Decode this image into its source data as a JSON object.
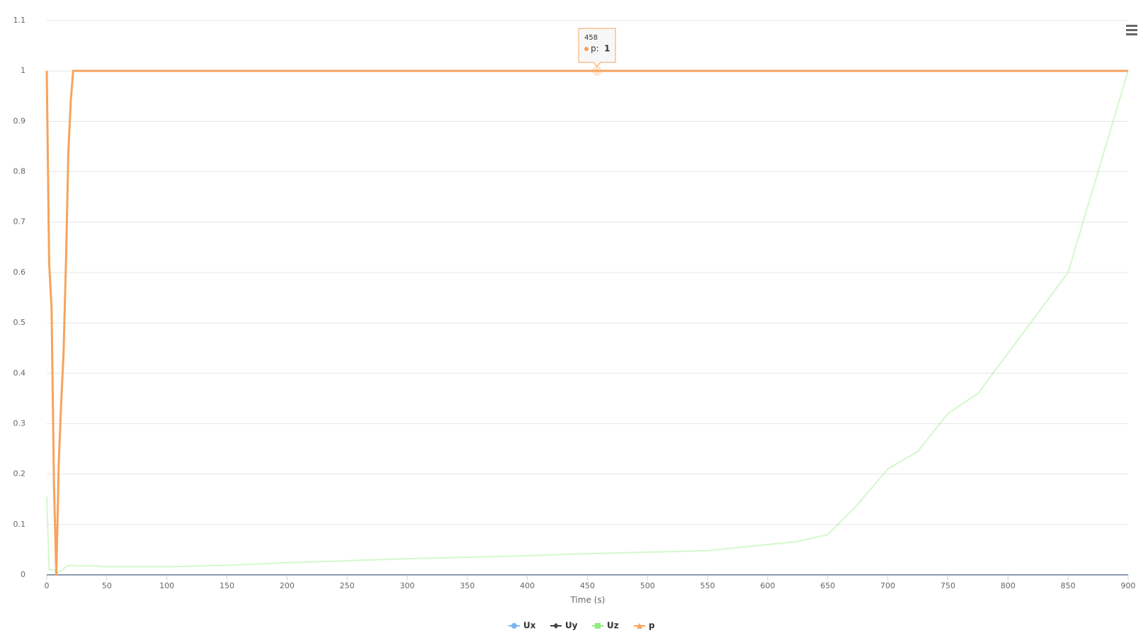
{
  "chart_data": {
    "type": "line",
    "x_label": "Time (s)",
    "x": [
      0,
      2,
      4,
      6,
      8,
      10,
      12,
      14,
      16,
      18,
      20,
      22,
      25,
      30,
      40,
      50,
      75,
      100,
      150,
      200,
      250,
      300,
      350,
      400,
      450,
      500,
      550,
      600,
      625,
      650,
      675,
      700,
      725,
      750,
      775,
      800,
      825,
      850,
      875,
      900
    ],
    "series": [
      {
        "name": "Ux",
        "color": "#7cb5ec",
        "marker": "circle",
        "values": [
          0,
          0,
          0,
          0,
          0,
          0,
          0,
          0,
          0,
          0,
          0,
          0,
          0,
          0,
          0,
          0,
          0,
          0,
          0,
          0,
          0,
          0,
          0,
          0,
          0,
          0,
          0,
          0,
          0,
          0,
          0,
          0,
          0,
          0,
          0,
          0,
          0,
          0,
          0,
          0
        ]
      },
      {
        "name": "Uy",
        "color": "#434348",
        "marker": "diamond",
        "values": [
          0,
          0,
          0,
          0,
          0,
          0,
          0,
          0,
          0,
          0,
          0,
          0,
          0,
          0,
          0,
          0,
          0,
          0,
          0,
          0,
          0,
          0,
          0,
          0,
          0,
          0,
          0,
          0,
          0,
          0,
          0,
          0,
          0,
          0,
          0,
          0,
          0,
          0,
          0,
          0
        ]
      },
      {
        "name": "Uz",
        "color": "#90ed7d",
        "marker": "square",
        "values": [
          0.155,
          0.01,
          0.01,
          0.01,
          0.005,
          0.005,
          0.008,
          0.012,
          0.016,
          0.018,
          0.019,
          0.019,
          0.018,
          0.018,
          0.018,
          0.016,
          0.016,
          0.016,
          0.019,
          0.024,
          0.028,
          0.032,
          0.035,
          0.038,
          0.042,
          0.045,
          0.048,
          0.06,
          0.066,
          0.08,
          0.14,
          0.21,
          0.245,
          0.32,
          0.36,
          0.44,
          0.52,
          0.6,
          0.8,
          1.0
        ]
      },
      {
        "name": "p",
        "color": "#f7a35c",
        "marker": "triangle",
        "values": [
          1,
          0.62,
          0.53,
          0.18,
          0,
          0.22,
          0.34,
          0.44,
          0.62,
          0.84,
          0.94,
          1,
          1,
          1,
          1,
          1,
          1,
          1,
          1,
          1,
          1,
          1,
          1,
          1,
          1,
          1,
          1,
          1,
          1,
          1,
          1,
          1,
          1,
          1,
          1,
          1,
          1,
          1,
          1,
          1
        ]
      }
    ],
    "hover": "p",
    "xlim": [
      0,
      900
    ],
    "xticks": [
      0,
      50,
      100,
      150,
      200,
      250,
      300,
      350,
      400,
      450,
      500,
      550,
      600,
      650,
      700,
      750,
      800,
      850,
      900
    ],
    "ylim": [
      0,
      1.1
    ],
    "yticks": [
      0,
      0.1,
      0.2,
      0.3,
      0.4,
      0.5,
      0.6,
      0.7,
      0.8,
      0.9,
      1,
      1.1
    ],
    "grid": true,
    "legend": "bottom",
    "tooltip": {
      "header": 458,
      "label": "p:",
      "value": 1
    }
  }
}
